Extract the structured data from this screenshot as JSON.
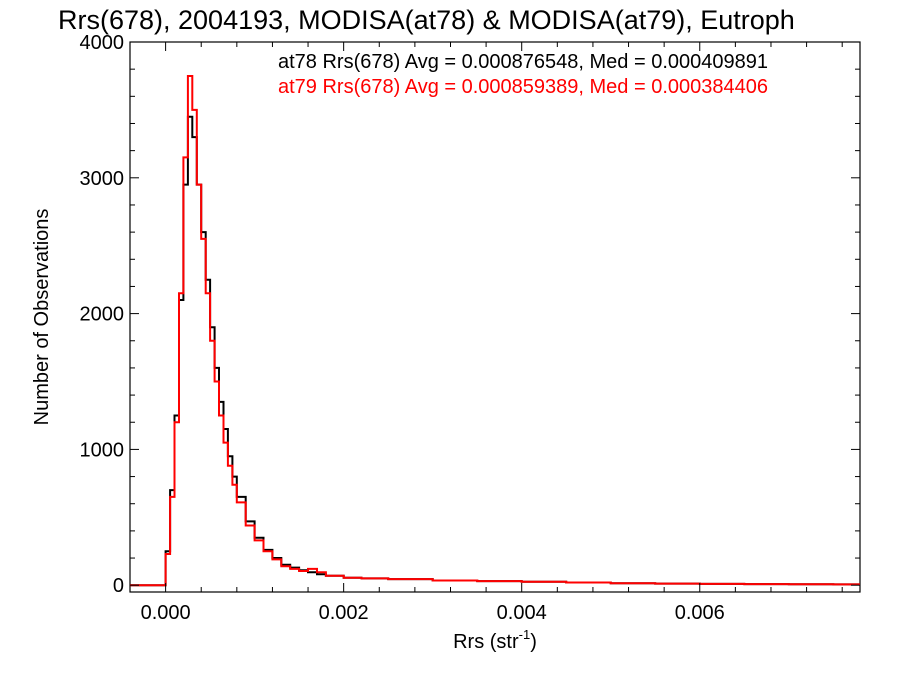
{
  "chart_data": {
    "type": "line",
    "title": "Rrs(678), 2004193, MODISA(at78) & MODISA(at79), Eutroph",
    "xlabel": "Rrs (str",
    "xlabel_sup": "-1",
    "xlabel_end": ")",
    "ylabel": "Number of Observations",
    "xlim": [
      -0.0004,
      0.0078
    ],
    "ylim": [
      -50,
      4000
    ],
    "x_ticks": [
      0.0,
      0.002,
      0.004,
      0.006
    ],
    "x_tick_labels": [
      "0.000",
      "0.002",
      "0.004",
      "0.006"
    ],
    "y_ticks": [
      0,
      1000,
      2000,
      3000,
      4000
    ],
    "y_tick_labels": [
      "0",
      "1000",
      "2000",
      "3000",
      "4000"
    ],
    "grid": false,
    "legend_position": "top-right",
    "step_histogram": true,
    "bin_width": 5e-05,
    "series": [
      {
        "name": "at78",
        "color": "#000000",
        "legend": "at78 Rrs(678) Avg = 0.000876548, Med = 0.000409891",
        "x": [
          -5e-05,
          0.0,
          5e-05,
          0.0001,
          0.00015,
          0.0002,
          0.00025,
          0.0003,
          0.00035,
          0.0004,
          0.00045,
          0.0005,
          0.00055,
          0.0006,
          0.00065,
          0.0007,
          0.00075,
          0.0008,
          0.0009,
          0.001,
          0.0011,
          0.0012,
          0.0013,
          0.0014,
          0.0015,
          0.0016,
          0.0017,
          0.0018,
          0.002,
          0.0022,
          0.0025,
          0.003,
          0.0035,
          0.004,
          0.0045,
          0.005,
          0.0055,
          0.006,
          0.0065,
          0.007,
          0.0075,
          0.0078
        ],
        "y": [
          0,
          250,
          700,
          1250,
          2100,
          2950,
          3450,
          3300,
          2950,
          2600,
          2250,
          1900,
          1600,
          1350,
          1150,
          950,
          800,
          650,
          470,
          350,
          260,
          200,
          150,
          130,
          110,
          95,
          80,
          70,
          55,
          50,
          45,
          35,
          30,
          25,
          20,
          15,
          12,
          10,
          8,
          7,
          6,
          5
        ]
      },
      {
        "name": "at79",
        "color": "#ff0000",
        "legend": "at79 Rrs(678) Avg = 0.000859389, Med = 0.000384406",
        "x": [
          -5e-05,
          0.0,
          5e-05,
          0.0001,
          0.00015,
          0.0002,
          0.00025,
          0.0003,
          0.00035,
          0.0004,
          0.00045,
          0.0005,
          0.00055,
          0.0006,
          0.00065,
          0.0007,
          0.00075,
          0.0008,
          0.0009,
          0.001,
          0.0011,
          0.0012,
          0.0013,
          0.0014,
          0.0015,
          0.0016,
          0.0017,
          0.0018,
          0.002,
          0.0022,
          0.0025,
          0.003,
          0.0035,
          0.004,
          0.0045,
          0.005,
          0.0055,
          0.006,
          0.0065,
          0.007,
          0.0075,
          0.0078
        ],
        "y": [
          0,
          230,
          650,
          1200,
          2150,
          3150,
          3750,
          3500,
          2950,
          2550,
          2150,
          1800,
          1500,
          1250,
          1050,
          880,
          740,
          610,
          440,
          330,
          250,
          190,
          140,
          120,
          105,
          120,
          95,
          70,
          55,
          50,
          45,
          35,
          30,
          25,
          20,
          15,
          12,
          10,
          8,
          7,
          6,
          5
        ]
      }
    ]
  }
}
